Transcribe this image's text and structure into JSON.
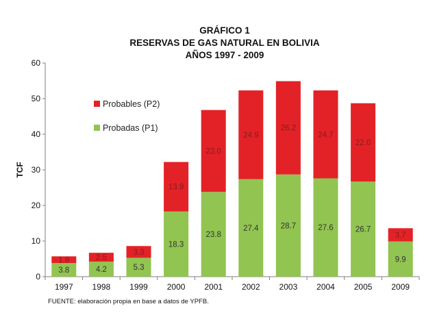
{
  "chart_data": {
    "type": "bar",
    "stacked": true,
    "title_lines": [
      "GRÁFICO 1",
      "RESERVAS DE GAS NATURAL EN BOLIVIA",
      "AÑOS 1997 - 2009"
    ],
    "ylabel": "TCF",
    "xlabel": "",
    "ylim": [
      0,
      60
    ],
    "yticks": [
      0,
      10,
      20,
      30,
      40,
      50,
      60
    ],
    "categories": [
      "1997",
      "1998",
      "1999",
      "2000",
      "2001",
      "2002",
      "2003",
      "2004",
      "2005",
      "2009"
    ],
    "series": [
      {
        "name": "Probadas (P1)",
        "color": "#92c451",
        "label_color": "#333333",
        "values": [
          3.8,
          4.2,
          5.3,
          18.3,
          23.8,
          27.4,
          28.7,
          27.6,
          26.7,
          9.9
        ],
        "labels": [
          "3.8",
          "4.2",
          "5.3",
          "18.3",
          "23.8",
          "27.4",
          "28.7",
          "27.6",
          "26.7",
          "9.9"
        ]
      },
      {
        "name": "Probables (P2)",
        "color": "#e32227",
        "label_color": "#8a1a1c",
        "values": [
          1.9,
          2.5,
          3.3,
          13.9,
          23.0,
          24.9,
          26.2,
          24.7,
          22.0,
          3.7
        ],
        "labels": [
          "1.9",
          "2.5",
          "3.3",
          "13.9",
          "23.0",
          "24.9",
          "26.2",
          "24.7",
          "22.0",
          "3.7"
        ]
      }
    ],
    "legend": {
      "position": "top-left",
      "order": [
        "Probables (P2)",
        "Probadas (P1)"
      ]
    },
    "grid": false,
    "source_note": "FUENTE: elaboración propia en base a datos de YPFB."
  }
}
